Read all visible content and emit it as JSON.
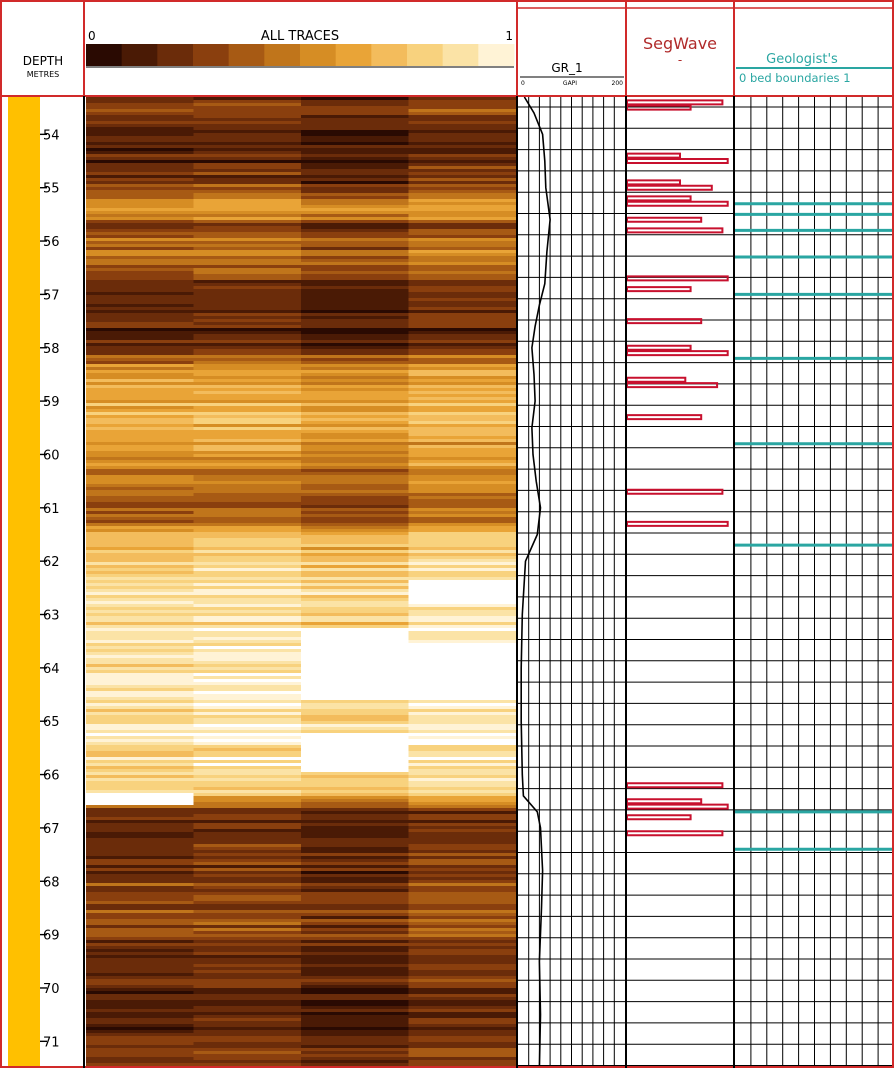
{
  "header": {
    "depth_label": "DEPTH",
    "depth_unit": "METRES",
    "traces_title": "ALL TRACES",
    "traces_scale_min": "0",
    "traces_scale_max": "1",
    "gr_title": "GR_1",
    "gr_scale_min": "0",
    "gr_unit": "GAPI",
    "gr_scale_max": "200",
    "segwave_title": "SegWave",
    "segwave_subtitle": "-",
    "geologist_title": "Geologist's",
    "geologist_subtitle": "0 bed boundaries 1"
  },
  "colors": {
    "frame_red": "#d12a2a",
    "depth_bar": "#ffc000",
    "segwave_red": "#c8102e",
    "geologist_teal": "#2aa6a2",
    "trace_palette": [
      "#2a0a02",
      "#4a1a05",
      "#6b2c0a",
      "#8a3f0e",
      "#a75a14",
      "#c0751b",
      "#d68d24",
      "#e9a437",
      "#f3bc5c",
      "#f8d27e",
      "#fbe3a6",
      "#fff3d6",
      "#ffffff"
    ]
  },
  "chart_data": [
    {
      "type": "heatmap",
      "title": "ALL TRACES",
      "colorbar_range": [
        0,
        1
      ],
      "colorbar_min_label": "0",
      "colorbar_max_label": "1",
      "depth_axis": {
        "label": "DEPTH",
        "unit": "METRES",
        "range": [
          53.3,
          71.5
        ],
        "ticks": [
          54,
          55,
          56,
          57,
          58,
          59,
          60,
          61,
          62,
          63,
          64,
          65,
          66,
          67,
          68,
          69,
          70,
          71
        ],
        "tick_labels": [
          "54",
          "55",
          "56",
          "57",
          "58",
          "59",
          "60",
          "61",
          "62",
          "63",
          "64",
          "65",
          "66",
          "67",
          "68",
          "69",
          "70",
          "71"
        ]
      },
      "columns": 4,
      "depth_profile": [
        {
          "depth": 53.3,
          "v": 0.25
        },
        {
          "depth": 53.8,
          "v": 0.22
        },
        {
          "depth": 54.3,
          "v": 0.12
        },
        {
          "depth": 54.8,
          "v": 0.2
        },
        {
          "depth": 55.1,
          "v": 0.35
        },
        {
          "depth": 55.4,
          "v": 0.62
        },
        {
          "depth": 55.7,
          "v": 0.3
        },
        {
          "depth": 56.0,
          "v": 0.45
        },
        {
          "depth": 56.3,
          "v": 0.38
        },
        {
          "depth": 56.6,
          "v": 0.28
        },
        {
          "depth": 57.0,
          "v": 0.12
        },
        {
          "depth": 57.4,
          "v": 0.18
        },
        {
          "depth": 57.8,
          "v": 0.1
        },
        {
          "depth": 58.2,
          "v": 0.45
        },
        {
          "depth": 58.7,
          "v": 0.62
        },
        {
          "depth": 59.2,
          "v": 0.7
        },
        {
          "depth": 59.8,
          "v": 0.55
        },
        {
          "depth": 60.3,
          "v": 0.48
        },
        {
          "depth": 60.8,
          "v": 0.35
        },
        {
          "depth": 61.2,
          "v": 0.4
        },
        {
          "depth": 61.6,
          "v": 0.72
        },
        {
          "depth": 62.0,
          "v": 0.82
        },
        {
          "depth": 62.8,
          "v": 0.85
        },
        {
          "depth": 63.5,
          "v": 0.86
        },
        {
          "depth": 64.5,
          "v": 0.87
        },
        {
          "depth": 65.5,
          "v": 0.86
        },
        {
          "depth": 66.3,
          "v": 0.83
        },
        {
          "depth": 66.7,
          "v": 0.15
        },
        {
          "depth": 67.3,
          "v": 0.18
        },
        {
          "depth": 68.0,
          "v": 0.26
        },
        {
          "depth": 68.8,
          "v": 0.3
        },
        {
          "depth": 69.5,
          "v": 0.22
        },
        {
          "depth": 70.2,
          "v": 0.12
        },
        {
          "depth": 71.0,
          "v": 0.2
        },
        {
          "depth": 71.5,
          "v": 0.22
        }
      ],
      "column_offsets": [
        0.0,
        0.03,
        -0.04,
        0.05
      ],
      "bright_patches": [
        {
          "col": 3,
          "top": 62.3,
          "bottom": 62.8
        },
        {
          "col": 2,
          "top": 63.2,
          "bottom": 64.6
        },
        {
          "col": 3,
          "top": 63.5,
          "bottom": 64.6
        },
        {
          "col": 2,
          "top": 65.2,
          "bottom": 65.9
        },
        {
          "col": 0,
          "top": 66.3,
          "bottom": 66.55
        }
      ]
    },
    {
      "type": "line",
      "title": "GR_1",
      "unit": "GAPI",
      "xlim": [
        0,
        200
      ],
      "x_tick_labels": [
        "0",
        "200"
      ],
      "points": [
        {
          "depth": 53.3,
          "gr": 12
        },
        {
          "depth": 53.6,
          "gr": 30
        },
        {
          "depth": 54.0,
          "gr": 46
        },
        {
          "depth": 54.5,
          "gr": 50
        },
        {
          "depth": 55.0,
          "gr": 52
        },
        {
          "depth": 55.6,
          "gr": 60
        },
        {
          "depth": 56.2,
          "gr": 54
        },
        {
          "depth": 56.8,
          "gr": 50
        },
        {
          "depth": 57.2,
          "gr": 40
        },
        {
          "depth": 57.6,
          "gr": 32
        },
        {
          "depth": 58.0,
          "gr": 26
        },
        {
          "depth": 58.5,
          "gr": 30
        },
        {
          "depth": 59.0,
          "gr": 32
        },
        {
          "depth": 59.5,
          "gr": 26
        },
        {
          "depth": 60.0,
          "gr": 28
        },
        {
          "depth": 60.5,
          "gr": 34
        },
        {
          "depth": 61.0,
          "gr": 42
        },
        {
          "depth": 61.5,
          "gr": 36
        },
        {
          "depth": 62.0,
          "gr": 14
        },
        {
          "depth": 63.0,
          "gr": 8
        },
        {
          "depth": 64.0,
          "gr": 6
        },
        {
          "depth": 65.0,
          "gr": 6
        },
        {
          "depth": 66.0,
          "gr": 8
        },
        {
          "depth": 66.4,
          "gr": 10
        },
        {
          "depth": 66.7,
          "gr": 36
        },
        {
          "depth": 67.0,
          "gr": 42
        },
        {
          "depth": 67.8,
          "gr": 46
        },
        {
          "depth": 68.5,
          "gr": 44
        },
        {
          "depth": 69.5,
          "gr": 40
        },
        {
          "depth": 70.5,
          "gr": 42
        },
        {
          "depth": 71.5,
          "gr": 40
        }
      ]
    },
    {
      "type": "segwave_boundaries",
      "title": "SegWave",
      "boundaries": [
        {
          "depth": 53.4,
          "amplitude": 0.9
        },
        {
          "depth": 53.5,
          "amplitude": 0.6
        },
        {
          "depth": 54.4,
          "amplitude": 0.5
        },
        {
          "depth": 54.5,
          "amplitude": 0.95
        },
        {
          "depth": 54.9,
          "amplitude": 0.5
        },
        {
          "depth": 55.0,
          "amplitude": 0.8
        },
        {
          "depth": 55.2,
          "amplitude": 0.6
        },
        {
          "depth": 55.3,
          "amplitude": 0.95
        },
        {
          "depth": 55.6,
          "amplitude": 0.7
        },
        {
          "depth": 55.8,
          "amplitude": 0.9
        },
        {
          "depth": 56.7,
          "amplitude": 0.95
        },
        {
          "depth": 56.9,
          "amplitude": 0.6
        },
        {
          "depth": 57.5,
          "amplitude": 0.7
        },
        {
          "depth": 58.0,
          "amplitude": 0.6
        },
        {
          "depth": 58.1,
          "amplitude": 0.95
        },
        {
          "depth": 58.6,
          "amplitude": 0.55
        },
        {
          "depth": 58.7,
          "amplitude": 0.85
        },
        {
          "depth": 59.3,
          "amplitude": 0.7
        },
        {
          "depth": 60.7,
          "amplitude": 0.9
        },
        {
          "depth": 61.3,
          "amplitude": 0.95
        },
        {
          "depth": 66.2,
          "amplitude": 0.9
        },
        {
          "depth": 66.5,
          "amplitude": 0.7
        },
        {
          "depth": 66.6,
          "amplitude": 0.95
        },
        {
          "depth": 66.8,
          "amplitude": 0.6
        },
        {
          "depth": 67.1,
          "amplitude": 0.9
        }
      ]
    },
    {
      "type": "geologist_boundaries",
      "title": "Geologist's",
      "subtitle": "0 bed boundaries 1",
      "xlim": [
        0,
        1
      ],
      "boundaries": [
        55.3,
        55.5,
        55.8,
        56.3,
        57.0,
        58.2,
        59.8,
        61.7,
        66.7,
        67.4
      ]
    }
  ]
}
